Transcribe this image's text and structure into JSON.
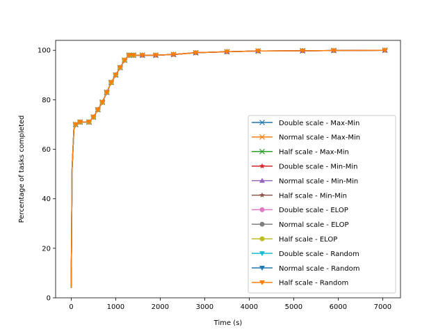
{
  "chart_data": {
    "type": "line",
    "title": "",
    "xlabel": "Time (s)",
    "ylabel": "Percentage of tasks completed",
    "xlim": [
      -350,
      7400
    ],
    "ylim": [
      0,
      104
    ],
    "xticks": [
      0,
      1000,
      2000,
      3000,
      4000,
      5000,
      6000,
      7000
    ],
    "yticks": [
      0,
      20,
      40,
      60,
      80,
      100
    ],
    "grid": false,
    "legend_position": "lower-right",
    "series": [
      {
        "name": "Double scale - Max-Min",
        "color": "#1f77b4",
        "marker": "x",
        "x": [
          0,
          20,
          60,
          100,
          200,
          400,
          500,
          600,
          700,
          800,
          900,
          1000,
          1100,
          1200,
          1300,
          1400,
          1600,
          1900,
          2300,
          2800,
          3500,
          4200,
          5200,
          5900,
          7050
        ],
        "y": [
          4,
          52,
          68,
          70,
          71,
          71,
          73,
          76,
          79,
          83,
          87,
          90,
          93,
          96,
          98,
          98,
          98,
          98,
          98.3,
          99,
          99.4,
          99.7,
          99.8,
          99.9,
          100
        ]
      },
      {
        "name": "Normal scale - Max-Min",
        "color": "#ff7f0e",
        "marker": "x",
        "x": [
          0,
          20,
          60,
          100,
          200,
          400,
          500,
          600,
          700,
          800,
          900,
          1000,
          1100,
          1200,
          1300,
          1400,
          1600,
          1900,
          2300,
          2800,
          3500,
          4200,
          5200,
          5900,
          7050
        ],
        "y": [
          4,
          52,
          68,
          70,
          71,
          71,
          73,
          76,
          79,
          83,
          87,
          90,
          93,
          96,
          98,
          98,
          98,
          98,
          98.3,
          99,
          99.4,
          99.7,
          99.8,
          99.9,
          100
        ]
      },
      {
        "name": "Half scale - Max-Min",
        "color": "#2ca02c",
        "marker": "x",
        "x": [
          0,
          20,
          60,
          100,
          200,
          400,
          500,
          600,
          700,
          800,
          900,
          1000,
          1100,
          1200,
          1300,
          1400,
          1600,
          1900,
          2300,
          2800,
          3500,
          4200,
          5200,
          5900,
          7050
        ],
        "y": [
          4,
          52,
          68,
          70,
          71,
          71,
          73,
          76,
          79,
          83,
          87,
          90,
          93,
          96,
          98,
          98,
          98,
          98,
          98.3,
          99,
          99.4,
          99.7,
          99.8,
          99.9,
          100
        ]
      },
      {
        "name": "Double scale - Min-Min",
        "color": "#d62728",
        "marker": "star",
        "x": [
          0,
          20,
          60,
          100,
          200,
          400,
          500,
          600,
          700,
          800,
          900,
          1000,
          1100,
          1200,
          1300,
          1400,
          1600,
          1900,
          2300,
          2800,
          3500,
          4200,
          5200,
          5900,
          7050
        ],
        "y": [
          4,
          52,
          68,
          70,
          71,
          71,
          73,
          76,
          79,
          83,
          87,
          90,
          93,
          96,
          98,
          98,
          98,
          98,
          98.3,
          99,
          99.4,
          99.7,
          99.8,
          99.9,
          100
        ]
      },
      {
        "name": "Normal scale - Min-Min",
        "color": "#9467bd",
        "marker": "triangle-up",
        "x": [
          0,
          20,
          60,
          100,
          200,
          400,
          500,
          600,
          700,
          800,
          900,
          1000,
          1100,
          1200,
          1300,
          1400,
          1600,
          1900,
          2300,
          2800,
          3500,
          4200,
          5200,
          5900,
          7050
        ],
        "y": [
          4,
          52,
          68,
          70,
          71,
          71,
          73,
          76,
          79,
          83,
          87,
          90,
          93,
          96,
          98,
          98,
          98,
          98,
          98.3,
          99,
          99.4,
          99.7,
          99.8,
          99.9,
          100
        ]
      },
      {
        "name": "Half scale - Min-Min",
        "color": "#8c564b",
        "marker": "star",
        "x": [
          0,
          20,
          60,
          100,
          200,
          400,
          500,
          600,
          700,
          800,
          900,
          1000,
          1100,
          1200,
          1300,
          1400,
          1600,
          1900,
          2300,
          2800,
          3500,
          4200,
          5200,
          5900,
          7050
        ],
        "y": [
          4,
          52,
          68,
          70,
          71,
          71,
          73,
          76,
          79,
          83,
          87,
          90,
          93,
          96,
          98,
          98,
          98,
          98,
          98.3,
          99,
          99.4,
          99.7,
          99.8,
          99.9,
          100
        ]
      },
      {
        "name": "Double scale - ELOP",
        "color": "#e377c2",
        "marker": "circle",
        "x": [
          0,
          20,
          60,
          100,
          200,
          400,
          500,
          600,
          700,
          800,
          900,
          1000,
          1100,
          1200,
          1300,
          1400
        ],
        "y": [
          4,
          52,
          68,
          70,
          71,
          71,
          73,
          76,
          79,
          83,
          87,
          90,
          93,
          96,
          98,
          98
        ]
      },
      {
        "name": "Normal scale - ELOP",
        "color": "#7f7f7f",
        "marker": "circle",
        "x": [
          0,
          20,
          60,
          100,
          200,
          400,
          500,
          600,
          700,
          800,
          900,
          1000,
          1100,
          1200,
          1300,
          1400
        ],
        "y": [
          4,
          52,
          68,
          70,
          71,
          71,
          73,
          76,
          79,
          83,
          87,
          90,
          93,
          96,
          98,
          98
        ]
      },
      {
        "name": "Half scale - ELOP",
        "color": "#bcbd22",
        "marker": "circle",
        "x": [
          0,
          20,
          60,
          100,
          200,
          400,
          500,
          600,
          700,
          800,
          900,
          1000,
          1100,
          1200,
          1300,
          1400
        ],
        "y": [
          4,
          52,
          68,
          70,
          71,
          71,
          73,
          76,
          79,
          83,
          87,
          90,
          93,
          96,
          98,
          98
        ]
      },
      {
        "name": "Double scale - Random",
        "color": "#17becf",
        "marker": "triangle-down",
        "x": [
          0,
          20,
          60,
          100,
          200,
          400,
          500,
          600,
          700,
          800,
          900,
          1000,
          1100,
          1200,
          1300,
          1400
        ],
        "y": [
          4,
          52,
          68,
          70,
          71,
          71,
          73,
          76,
          79,
          83,
          87,
          90,
          93,
          96,
          98,
          98
        ]
      },
      {
        "name": "Normal scale - Random",
        "color": "#1f77b4",
        "marker": "triangle-down",
        "x": [
          0,
          20,
          60,
          100,
          200,
          400,
          500,
          600,
          700,
          800,
          900,
          1000,
          1100,
          1200,
          1300,
          1400
        ],
        "y": [
          4,
          52,
          68,
          70,
          71,
          71,
          73,
          76,
          79,
          83,
          87,
          90,
          93,
          96,
          98,
          98
        ]
      },
      {
        "name": "Half scale - Random",
        "color": "#ff7f0e",
        "marker": "triangle-down",
        "x": [
          0,
          20,
          60,
          100,
          200,
          400,
          500,
          600,
          700,
          800,
          900,
          1000,
          1100,
          1200,
          1300,
          1400,
          1600,
          1900,
          2300,
          2800,
          3500,
          4200,
          5200,
          5900,
          7050
        ],
        "y": [
          4,
          52,
          68,
          70,
          71,
          71,
          73,
          76,
          79,
          83,
          87,
          90,
          93,
          96,
          98,
          98,
          98,
          98,
          98.3,
          99,
          99.4,
          99.7,
          99.8,
          99.9,
          100
        ]
      }
    ]
  }
}
